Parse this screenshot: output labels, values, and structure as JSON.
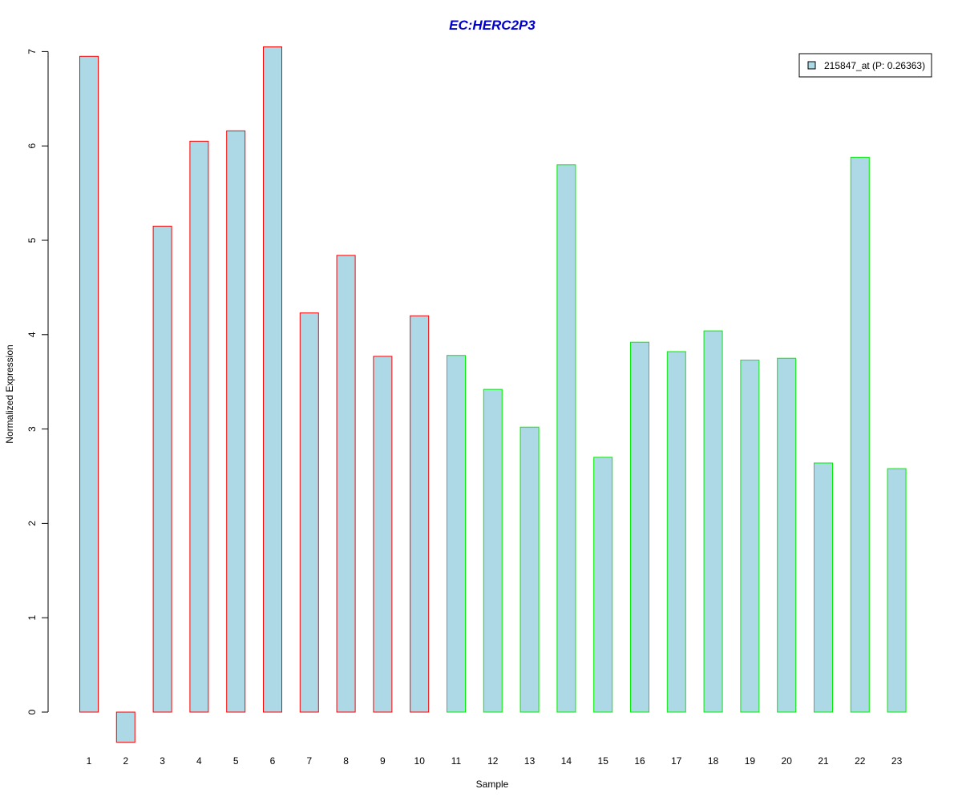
{
  "chart_data": {
    "type": "bar",
    "title": "EC:HERC2P3",
    "xlabel": "Sample",
    "ylabel": "Normalized Expression",
    "categories": [
      "1",
      "2",
      "3",
      "4",
      "5",
      "6",
      "7",
      "8",
      "9",
      "10",
      "11",
      "12",
      "13",
      "14",
      "15",
      "16",
      "17",
      "18",
      "19",
      "20",
      "21",
      "22",
      "23"
    ],
    "series": [
      {
        "name": "215847_at (P: 0.26363)",
        "values": [
          6.95,
          -0.32,
          5.15,
          6.05,
          6.16,
          7.05,
          4.23,
          4.84,
          3.77,
          4.2,
          3.78,
          3.42,
          3.02,
          5.8,
          2.7,
          3.92,
          3.82,
          4.04,
          3.73,
          3.75,
          2.64,
          5.88,
          2.58
        ]
      }
    ],
    "group_border_colors": [
      "#ff0000",
      "#ff0000",
      "#ff0000",
      "#ff0000",
      "#ff0000",
      "#ff0000",
      "#ff0000",
      "#ff0000",
      "#ff0000",
      "#ff0000",
      "#00ee00",
      "#00ee00",
      "#00ee00",
      "#00ee00",
      "#00ee00",
      "#00ee00",
      "#00ee00",
      "#00ee00",
      "#00ee00",
      "#00ee00",
      "#00ee00",
      "#00ee00",
      "#00ee00"
    ],
    "bar_fill": "#add8e6",
    "title_color": "#0000cc",
    "yticks": [
      0,
      1,
      2,
      3,
      4,
      5,
      6,
      7
    ],
    "ylim": [
      -0.32,
      7.05
    ],
    "grid": false,
    "legend_position": "top-right"
  }
}
